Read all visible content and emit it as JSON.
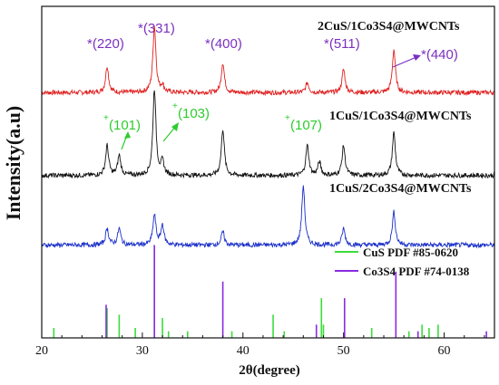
{
  "chart_data": {
    "type": "line",
    "xlabel": "2θ(degree)",
    "ylabel": "Intensity(a.u)",
    "xlim": [
      20,
      65
    ],
    "x_ticks": [
      20,
      30,
      40,
      50,
      60
    ],
    "y_ticks_shown": false,
    "grid": false,
    "legend_position": "lower-right",
    "series": [
      {
        "name": "2CuS/1Co3S4@MWCNTs",
        "color": "#e02020",
        "baseline": 0.74,
        "peaks": [
          [
            26.5,
            0.08
          ],
          [
            31.2,
            0.2
          ],
          [
            32.0,
            0.02
          ],
          [
            38.0,
            0.09
          ],
          [
            46.4,
            0.03
          ],
          [
            50.0,
            0.07
          ],
          [
            55.0,
            0.13
          ]
        ]
      },
      {
        "name": "1CuS/1Co3S4@MWCNTs",
        "color": "#111111",
        "baseline": 0.49,
        "peaks": [
          [
            26.5,
            0.09
          ],
          [
            27.7,
            0.06
          ],
          [
            31.2,
            0.26
          ],
          [
            32.0,
            0.04
          ],
          [
            38.0,
            0.14
          ],
          [
            46.4,
            0.09
          ],
          [
            47.6,
            0.04
          ],
          [
            50.0,
            0.09
          ],
          [
            55.0,
            0.13
          ]
        ]
      },
      {
        "name": "1CuS/2Co3S4@MWCNTs",
        "color": "#1a2fc8",
        "baseline": 0.28,
        "peaks": [
          [
            26.5,
            0.05
          ],
          [
            27.7,
            0.05
          ],
          [
            31.2,
            0.09
          ],
          [
            32.0,
            0.06
          ],
          [
            38.0,
            0.04
          ],
          [
            46.0,
            0.18
          ],
          [
            50.0,
            0.05
          ],
          [
            55.0,
            0.1
          ]
        ]
      }
    ],
    "reference_patterns": [
      {
        "name": "CuS PDF #85-0620",
        "color": "#3ddc3d",
        "lines": [
          [
            21.2,
            0.03
          ],
          [
            26.5,
            0.09
          ],
          [
            27.7,
            0.07
          ],
          [
            29.3,
            0.03
          ],
          [
            31.2,
            0.28
          ],
          [
            32.0,
            0.06
          ],
          [
            32.6,
            0.02
          ],
          [
            34.5,
            0.02
          ],
          [
            38.9,
            0.02
          ],
          [
            43.0,
            0.07
          ],
          [
            44.1,
            0.02
          ],
          [
            47.8,
            0.12
          ],
          [
            48.0,
            0.04
          ],
          [
            52.8,
            0.03
          ],
          [
            56.5,
            0.02
          ],
          [
            57.8,
            0.04
          ],
          [
            58.5,
            0.03
          ],
          [
            59.4,
            0.04
          ]
        ]
      },
      {
        "name": "Co3S4 PDF #74-0138",
        "color": "#8a2be2",
        "lines": [
          [
            26.4,
            0.1
          ],
          [
            31.2,
            0.28
          ],
          [
            38.0,
            0.17
          ],
          [
            47.3,
            0.04
          ],
          [
            50.1,
            0.12
          ],
          [
            55.2,
            0.2
          ],
          [
            57.4,
            0.02
          ],
          [
            64.2,
            0.02
          ]
        ]
      }
    ],
    "annotations": {
      "co3s4_peaks": [
        "*(220)",
        "*(331)",
        "*(400)",
        "*(511)",
        "*(440)"
      ],
      "cus_peaks": [
        "(101)",
        "(103)",
        "(107)"
      ]
    }
  }
}
